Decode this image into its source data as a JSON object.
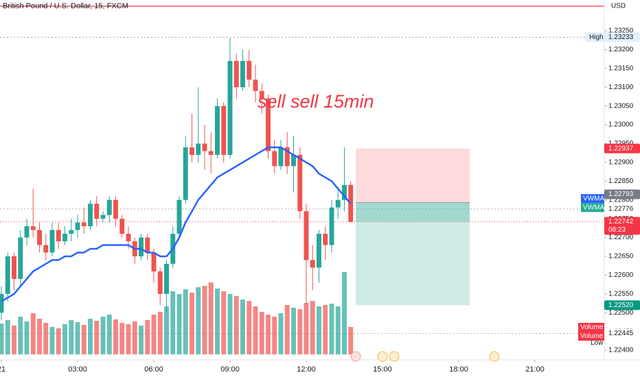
{
  "chart_data": {
    "type": "candlestick",
    "title": "British Pound / U.S. Dollar, 15, FXCM",
    "annotation": "sell sell 15min",
    "currency": "USD",
    "x": [
      0,
      0.25,
      0.5,
      0.75,
      1,
      1.25,
      1.5,
      1.75,
      2,
      2.25,
      2.5,
      2.75,
      3,
      3.25,
      3.5,
      3.75,
      4,
      4.25,
      4.5,
      4.75,
      5,
      5.25,
      5.5,
      5.75,
      6,
      6.25,
      6.5,
      6.75,
      7,
      7.25,
      7.5,
      7.75,
      8,
      8.25,
      8.5,
      8.75,
      9,
      9.25,
      9.5,
      9.75,
      10,
      10.25,
      10.5,
      10.75,
      11,
      11.25,
      11.5,
      11.75,
      12,
      12.25,
      12.5,
      12.75,
      13,
      13.25,
      13.5,
      13.75
    ],
    "open": [
      1.225,
      1.2255,
      1.2265,
      1.2259,
      1.227,
      1.2273,
      1.2272,
      1.2268,
      1.2266,
      1.2272,
      1.2269,
      1.2271,
      1.2272,
      1.2274,
      1.2273,
      1.2279,
      1.2275,
      1.2276,
      1.228,
      1.2275,
      1.2271,
      1.2269,
      1.2265,
      1.227,
      1.2266,
      1.2261,
      1.2255,
      1.2263,
      1.2271,
      1.228,
      1.2294,
      1.2292,
      1.2295,
      1.2293,
      1.2292,
      1.2305,
      1.2292,
      1.2317,
      1.231,
      1.2317,
      1.2312,
      1.2309,
      1.2307,
      1.2293,
      1.2289,
      1.2294,
      1.2289,
      1.2292,
      1.2277,
      1.2264,
      1.2262,
      1.2271,
      1.2268,
      1.2278,
      1.228,
      1.2284
    ],
    "high": [
      1.2257,
      1.2266,
      1.2266,
      1.2272,
      1.2275,
      1.2283,
      1.2274,
      1.2271,
      1.2274,
      1.2274,
      1.2273,
      1.2275,
      1.2276,
      1.2278,
      1.228,
      1.2281,
      1.2277,
      1.2281,
      1.2281,
      1.2276,
      1.2273,
      1.227,
      1.2271,
      1.2271,
      1.2267,
      1.2262,
      1.2264,
      1.2273,
      1.2281,
      1.2297,
      1.2303,
      1.231,
      1.23,
      1.2298,
      1.2307,
      1.2306,
      1.2323,
      1.2319,
      1.232,
      1.232,
      1.2316,
      1.2311,
      1.2308,
      1.2296,
      1.2296,
      1.2298,
      1.2297,
      1.2294,
      1.2279,
      1.2268,
      1.2272,
      1.2273,
      1.228,
      1.2283,
      1.2294,
      1.2285
    ],
    "low": [
      1.2248,
      1.2253,
      1.2256,
      1.2257,
      1.2268,
      1.227,
      1.2266,
      1.2264,
      1.2265,
      1.2267,
      1.2268,
      1.2269,
      1.227,
      1.2271,
      1.2272,
      1.2273,
      1.2274,
      1.2274,
      1.2273,
      1.227,
      1.2267,
      1.2263,
      1.2264,
      1.2264,
      1.2258,
      1.2252,
      1.225,
      1.2262,
      1.227,
      1.2279,
      1.229,
      1.229,
      1.2288,
      1.2287,
      1.2291,
      1.229,
      1.2291,
      1.2307,
      1.2309,
      1.231,
      1.2306,
      1.2303,
      1.2291,
      1.2287,
      1.2288,
      1.2287,
      1.2282,
      1.2275,
      1.2252,
      1.2256,
      1.2258,
      1.2264,
      1.2266,
      1.2275,
      1.2277,
      1.2274
    ],
    "close": [
      1.2255,
      1.2265,
      1.2259,
      1.227,
      1.2273,
      1.2272,
      1.2268,
      1.2266,
      1.2272,
      1.2269,
      1.2271,
      1.2272,
      1.2274,
      1.2273,
      1.2279,
      1.2275,
      1.2276,
      1.228,
      1.2275,
      1.2271,
      1.2269,
      1.2265,
      1.227,
      1.2266,
      1.2261,
      1.2255,
      1.2263,
      1.2271,
      1.228,
      1.2294,
      1.2292,
      1.2295,
      1.2293,
      1.2292,
      1.2305,
      1.2292,
      1.2317,
      1.231,
      1.2317,
      1.2312,
      1.2309,
      1.2307,
      1.2293,
      1.2289,
      1.2294,
      1.2289,
      1.2292,
      1.2277,
      1.2264,
      1.2262,
      1.2271,
      1.2268,
      1.2278,
      1.228,
      1.2284,
      1.22742
    ],
    "volume": [
      45,
      50,
      42,
      55,
      48,
      60,
      52,
      46,
      40,
      38,
      44,
      50,
      47,
      43,
      52,
      49,
      55,
      58,
      51,
      46,
      44,
      48,
      42,
      50,
      58,
      62,
      70,
      92,
      88,
      95,
      90,
      98,
      100,
      105,
      96,
      92,
      88,
      85,
      80,
      78,
      70,
      62,
      58,
      55,
      60,
      72,
      68,
      66,
      75,
      78,
      70,
      72,
      74,
      70,
      120,
      40
    ],
    "vwma": {
      "name": "VWMA",
      "color": "#2962ff",
      "values": [
        1.2253,
        1.2254,
        1.2255,
        1.2257,
        1.2259,
        1.2261,
        1.2262,
        1.2263,
        1.2264,
        1.2264,
        1.2265,
        1.2265,
        1.2266,
        1.2266,
        1.2267,
        1.2267,
        1.2268,
        1.2268,
        1.2268,
        1.2268,
        1.2268,
        1.2267,
        1.2267,
        1.2266,
        1.2266,
        1.2265,
        1.2265,
        1.2267,
        1.227,
        1.2274,
        1.2277,
        1.228,
        1.2282,
        1.2284,
        1.2286,
        1.2287,
        1.2288,
        1.2289,
        1.229,
        1.2291,
        1.2292,
        1.2293,
        1.2294,
        1.2294,
        1.2294,
        1.2293,
        1.2292,
        1.2291,
        1.229,
        1.2289,
        1.2287,
        1.2286,
        1.2285,
        1.2283,
        1.2281,
        1.2279
      ]
    },
    "indicator_labels": [
      "VWMA",
      "VWMA"
    ],
    "volume_labels": [
      "Volume",
      "Volume"
    ],
    "up_color": "#26a69a",
    "down_color": "#ef5350",
    "xlim": [
      -0.054,
      23.73
    ],
    "xticks": [
      {
        "value": 0,
        "label": "21"
      },
      {
        "value": 3,
        "label": "03:00"
      },
      {
        "value": 6,
        "label": "06:00"
      },
      {
        "value": 9,
        "label": "09:00"
      },
      {
        "value": 12,
        "label": "12:00"
      },
      {
        "value": 15,
        "label": "15:00"
      },
      {
        "value": 18,
        "label": "18:00"
      },
      {
        "value": 21,
        "label": "21:00"
      }
    ],
    "ylim": [
      1.223745,
      1.233321
    ],
    "yticks": [
      {
        "value": 1.2325,
        "label": "1.23250"
      },
      {
        "value": 1.232,
        "label": "1.23200"
      },
      {
        "value": 1.2315,
        "label": "1.23150"
      },
      {
        "value": 1.231,
        "label": "1.23100"
      },
      {
        "value": 1.2305,
        "label": "1.23050"
      },
      {
        "value": 1.23,
        "label": "1.23000"
      },
      {
        "value": 1.2295,
        "label": "1.22950"
      },
      {
        "value": 1.229,
        "label": "1.22900"
      },
      {
        "value": 1.2285,
        "label": "1.22850"
      },
      {
        "value": 1.228,
        "label": "1.22800"
      },
      {
        "value": 1.2275,
        "label": "1.22750"
      },
      {
        "value": 1.227,
        "label": "1.22700"
      },
      {
        "value": 1.2265,
        "label": "1.22650"
      },
      {
        "value": 1.226,
        "label": "1.22600"
      },
      {
        "value": 1.2255,
        "label": "1.22550"
      },
      {
        "value": 1.225,
        "label": "1.22500"
      },
      {
        "value": 1.2245,
        "label": "1.22450"
      },
      {
        "value": 1.224,
        "label": "1.22400"
      }
    ],
    "levels": [
      {
        "name": "High",
        "value": 1.23233,
        "label": "1.23233"
      },
      {
        "name": "Avg",
        "value": 1.22776,
        "label": "1.22776"
      },
      {
        "name": "Low",
        "value": 1.22445,
        "label": "1.22445"
      }
    ],
    "last_price": {
      "value": 1.22742,
      "label": "1.22742",
      "countdown": "08:23"
    },
    "position": {
      "time_range": [
        13.95,
        18.43
      ],
      "stop": {
        "value": 1.22937,
        "label": "1.22937"
      },
      "entry": {
        "value": 1.22793,
        "label": "1.22793"
      },
      "target": {
        "value": 1.2252,
        "label": "1.22520"
      }
    }
  }
}
